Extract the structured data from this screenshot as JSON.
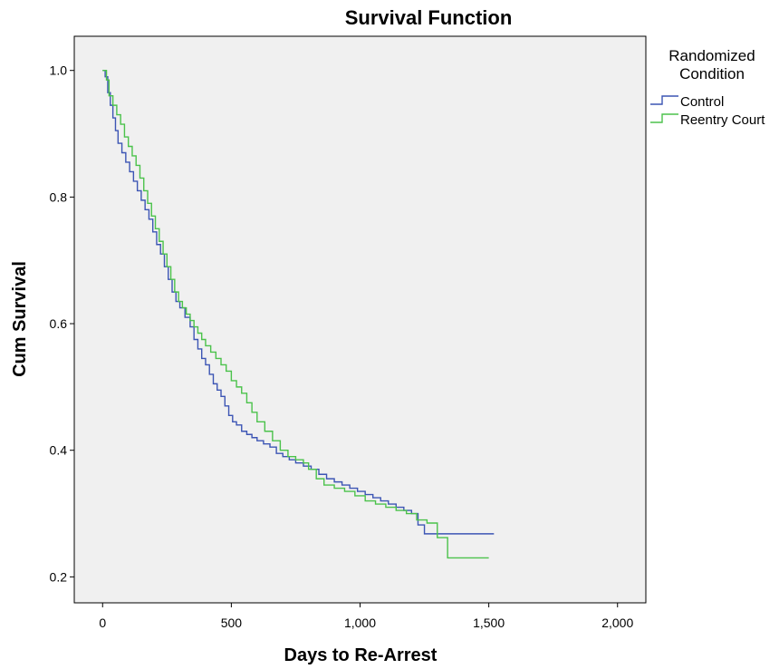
{
  "chart_data": {
    "type": "line",
    "title": "Survival Function",
    "xlabel": "Days to Re-Arrest",
    "ylabel": "Cum Survival",
    "xlim": [
      -110,
      2110
    ],
    "ylim": [
      0.159,
      1.054
    ],
    "x_ticks": [
      0,
      500,
      1000,
      1500,
      2000
    ],
    "x_tick_labels": [
      "0",
      "500",
      "1,000",
      "1,500",
      "2,000"
    ],
    "y_ticks": [
      0.2,
      0.4,
      0.6,
      0.8,
      1.0
    ],
    "y_tick_labels": [
      "0.2",
      "0.4",
      "0.6",
      "0.8",
      "1.0"
    ],
    "grid": false,
    "step": true,
    "plot_background": "#f0f0f0",
    "legend": {
      "title_lines": [
        "Randomized",
        "Condition"
      ],
      "position": "right",
      "entries": [
        "Control",
        "Reentry Court"
      ]
    },
    "series": [
      {
        "name": "Control",
        "color": "#3c55b4",
        "x": [
          0,
          10,
          20,
          30,
          40,
          50,
          60,
          75,
          90,
          105,
          120,
          135,
          150,
          165,
          180,
          195,
          210,
          225,
          240,
          255,
          270,
          285,
          300,
          320,
          340,
          355,
          370,
          385,
          400,
          415,
          430,
          445,
          460,
          475,
          490,
          505,
          520,
          540,
          560,
          580,
          600,
          625,
          650,
          675,
          700,
          725,
          750,
          780,
          810,
          840,
          870,
          900,
          930,
          960,
          990,
          1020,
          1050,
          1080,
          1110,
          1140,
          1170,
          1200,
          1225,
          1250,
          1520
        ],
        "y": [
          1.0,
          0.99,
          0.965,
          0.945,
          0.925,
          0.905,
          0.885,
          0.87,
          0.855,
          0.84,
          0.825,
          0.81,
          0.795,
          0.78,
          0.765,
          0.745,
          0.725,
          0.71,
          0.69,
          0.67,
          0.65,
          0.635,
          0.625,
          0.61,
          0.595,
          0.575,
          0.56,
          0.545,
          0.535,
          0.52,
          0.505,
          0.495,
          0.485,
          0.47,
          0.455,
          0.445,
          0.44,
          0.43,
          0.425,
          0.42,
          0.415,
          0.41,
          0.405,
          0.395,
          0.39,
          0.385,
          0.38,
          0.375,
          0.37,
          0.362,
          0.355,
          0.35,
          0.345,
          0.34,
          0.335,
          0.33,
          0.325,
          0.32,
          0.315,
          0.31,
          0.305,
          0.3,
          0.282,
          0.268,
          0.268
        ]
      },
      {
        "name": "Reentry Court",
        "color": "#4bc24b",
        "x": [
          0,
          15,
          25,
          40,
          55,
          70,
          85,
          100,
          115,
          130,
          145,
          160,
          175,
          190,
          205,
          220,
          235,
          250,
          265,
          280,
          295,
          310,
          325,
          340,
          355,
          370,
          385,
          400,
          420,
          440,
          460,
          480,
          500,
          520,
          540,
          560,
          580,
          600,
          630,
          660,
          690,
          720,
          750,
          780,
          800,
          830,
          860,
          900,
          940,
          980,
          1020,
          1060,
          1100,
          1140,
          1180,
          1200,
          1220,
          1260,
          1300,
          1340,
          1500
        ],
        "y": [
          1.0,
          0.985,
          0.96,
          0.945,
          0.93,
          0.915,
          0.895,
          0.88,
          0.865,
          0.85,
          0.83,
          0.81,
          0.79,
          0.77,
          0.75,
          0.73,
          0.71,
          0.69,
          0.67,
          0.65,
          0.635,
          0.625,
          0.615,
          0.605,
          0.595,
          0.585,
          0.575,
          0.565,
          0.555,
          0.545,
          0.535,
          0.525,
          0.51,
          0.5,
          0.49,
          0.475,
          0.46,
          0.445,
          0.43,
          0.415,
          0.4,
          0.39,
          0.385,
          0.38,
          0.37,
          0.355,
          0.345,
          0.34,
          0.335,
          0.328,
          0.32,
          0.315,
          0.31,
          0.305,
          0.3,
          0.3,
          0.29,
          0.285,
          0.262,
          0.23,
          0.23
        ]
      }
    ]
  }
}
